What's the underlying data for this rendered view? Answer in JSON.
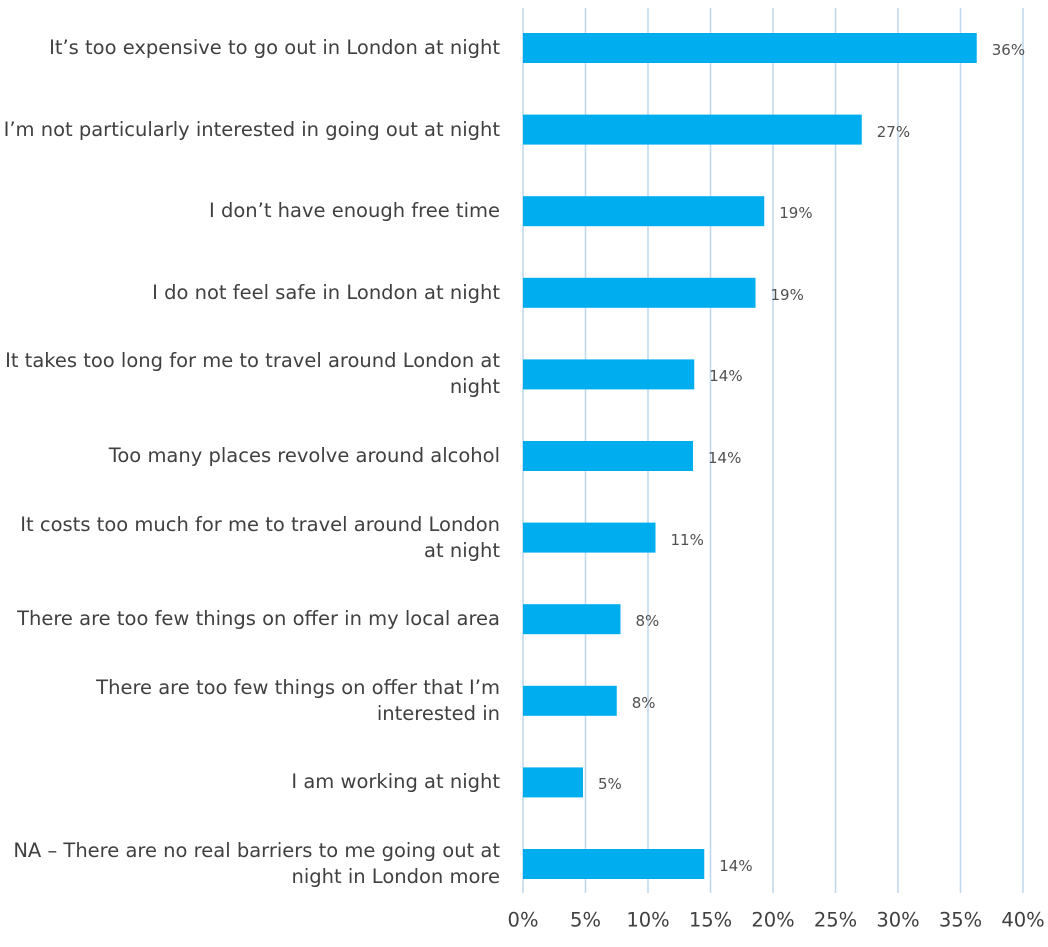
{
  "chart_data": {
    "type": "bar",
    "orientation": "horizontal",
    "categories": [
      "It’s too expensive to go out in London at night",
      "I’m not particularly interested in going out at night",
      "I don’t have enough free time",
      "I do not feel safe in London at night",
      "It takes too long for me to travel around London at night",
      "Too many places revolve around alcohol",
      "It costs too much for me to travel around London at night",
      "There are too few things on offer in my local area",
      "There are too few things on offer that I’m interested in",
      "I am working at night",
      "NA – There are no real barriers to me going out at night in London more"
    ],
    "values": [
      36.3,
      27.1,
      19.3,
      18.6,
      13.7,
      13.6,
      10.6,
      7.8,
      7.5,
      4.8,
      14.5
    ],
    "data_labels": [
      "36%",
      "27%",
      "19%",
      "19%",
      "14%",
      "14%",
      "11%",
      "8%",
      "8%",
      "5%",
      "14%"
    ],
    "xlim": [
      0,
      40
    ],
    "ticks": [
      "0%",
      "5%",
      "10%",
      "15%",
      "20%",
      "25%",
      "30%",
      "35%",
      "40%"
    ],
    "title": "",
    "xlabel": "",
    "ylabel": "",
    "grid": "vertical",
    "legend": "none",
    "colors": {
      "bar": "#00AEEF",
      "grid": "#BDD7EE"
    }
  }
}
